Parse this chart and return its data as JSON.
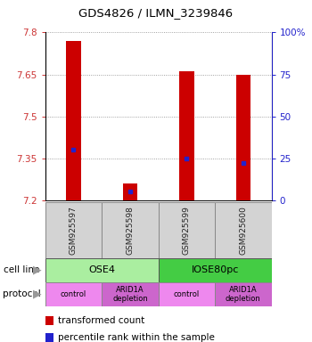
{
  "title": "GDS4826 / ILMN_3239846",
  "samples": [
    "GSM925597",
    "GSM925598",
    "GSM925599",
    "GSM925600"
  ],
  "transformed_counts": [
    7.77,
    7.26,
    7.66,
    7.65
  ],
  "percentile_ranks": [
    30,
    5,
    25,
    22
  ],
  "ymin": 7.2,
  "ymax": 7.8,
  "yticks": [
    7.2,
    7.35,
    7.5,
    7.65,
    7.8
  ],
  "right_yticks": [
    0,
    25,
    50,
    75,
    100
  ],
  "right_ytick_labels": [
    "0",
    "25",
    "50",
    "75",
    "100%"
  ],
  "bar_color": "#cc0000",
  "blue_marker_color": "#2222cc",
  "cell_lines": [
    {
      "label": "OSE4",
      "start": 0,
      "end": 2,
      "color": "#aaeea0"
    },
    {
      "label": "IOSE80pc",
      "start": 2,
      "end": 4,
      "color": "#44cc44"
    }
  ],
  "protocols": [
    {
      "label": "control",
      "start": 0,
      "end": 1,
      "color": "#ee88ee"
    },
    {
      "label": "ARID1A\ndepletion",
      "start": 1,
      "end": 2,
      "color": "#cc66cc"
    },
    {
      "label": "control",
      "start": 2,
      "end": 3,
      "color": "#ee88ee"
    },
    {
      "label": "ARID1A\ndepletion",
      "start": 3,
      "end": 4,
      "color": "#cc66cc"
    }
  ],
  "legend_items": [
    {
      "color": "#cc0000",
      "label": "transformed count"
    },
    {
      "color": "#2222cc",
      "label": "percentile rank within the sample"
    }
  ],
  "sample_box_color": "#d3d3d3",
  "sample_text_color": "#222222",
  "left_axis_color": "#cc3333",
  "right_axis_color": "#2222cc",
  "bar_width": 0.13,
  "arrow_color": "#999999"
}
